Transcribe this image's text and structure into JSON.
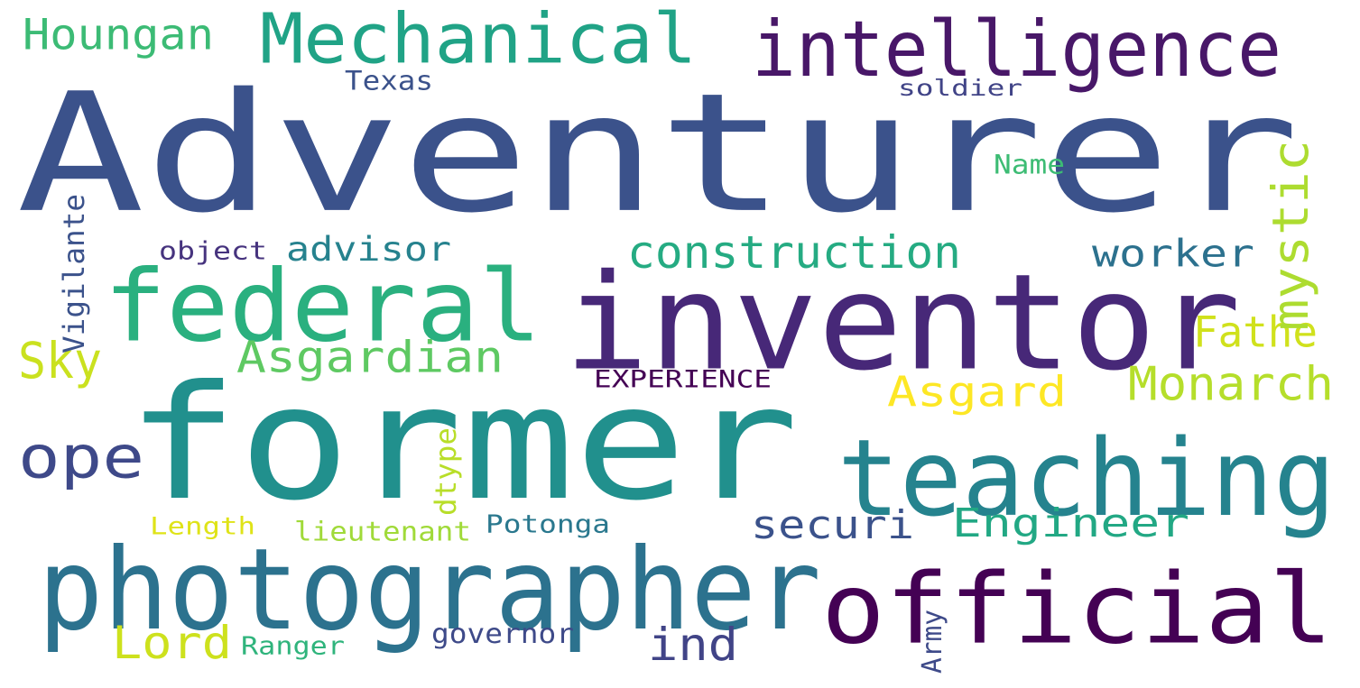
{
  "words": [
    {
      "text": "Adventurer",
      "color": "#3b528b",
      "rotated": false
    },
    {
      "text": "former",
      "color": "#21908d",
      "rotated": false
    },
    {
      "text": "inventor",
      "color": "#472878",
      "rotated": false
    },
    {
      "text": "photographer",
      "color": "#2c728e",
      "rotated": false
    },
    {
      "text": "official",
      "color": "#440154",
      "rotated": false
    },
    {
      "text": "teaching",
      "color": "#25838e",
      "rotated": false
    },
    {
      "text": "federal",
      "color": "#2ab07f",
      "rotated": false
    },
    {
      "text": "intelligence",
      "color": "#481768",
      "rotated": false
    },
    {
      "text": "Mechanical",
      "color": "#20a386",
      "rotated": false
    },
    {
      "text": "construction",
      "color": "#25ab82",
      "rotated": false
    },
    {
      "text": "Asgardian",
      "color": "#5ec962",
      "rotated": false
    },
    {
      "text": "Monarch",
      "color": "#b5de2b",
      "rotated": false
    },
    {
      "text": "Engineer",
      "color": "#22a884",
      "rotated": false
    },
    {
      "text": "ope",
      "color": "#3e4989",
      "rotated": false
    },
    {
      "text": "securi",
      "color": "#3b528b",
      "rotated": false
    },
    {
      "text": "worker",
      "color": "#2c718e",
      "rotated": false
    },
    {
      "text": "Fathe",
      "color": "#d0e11c",
      "rotated": false
    },
    {
      "text": "Asgard",
      "color": "#fde725",
      "rotated": false
    },
    {
      "text": "Lord",
      "color": "#cde11d",
      "rotated": false
    },
    {
      "text": "Houngan",
      "color": "#3cbb75",
      "rotated": false
    },
    {
      "text": "advisor",
      "color": "#26828e",
      "rotated": false
    },
    {
      "text": "Sky",
      "color": "#cae11f",
      "rotated": false
    },
    {
      "text": "ind",
      "color": "#414487",
      "rotated": false
    },
    {
      "text": "mystic",
      "color": "#addc30",
      "rotated": true
    },
    {
      "text": "EXPERIENCE",
      "color": "#440154",
      "rotated": false
    },
    {
      "text": "Potonga",
      "color": "#2a788e",
      "rotated": false
    },
    {
      "text": "lieutenant",
      "color": "#a0da39",
      "rotated": false
    },
    {
      "text": "Length",
      "color": "#dfe318",
      "rotated": false
    },
    {
      "text": "Ranger",
      "color": "#2fb47c",
      "rotated": false
    },
    {
      "text": "governor",
      "color": "#3e4a89",
      "rotated": false
    },
    {
      "text": "Texas",
      "color": "#3b528b",
      "rotated": false
    },
    {
      "text": "soldier",
      "color": "#414487",
      "rotated": false
    },
    {
      "text": "Name",
      "color": "#3dbc74",
      "rotated": false
    },
    {
      "text": "object",
      "color": "#46337e",
      "rotated": false
    },
    {
      "text": "Vigilante",
      "color": "#3b528b",
      "rotated": true
    },
    {
      "text": "dtype",
      "color": "#b8de29",
      "rotated": true
    },
    {
      "text": "Army",
      "color": "#3e4a89",
      "rotated": true
    }
  ]
}
